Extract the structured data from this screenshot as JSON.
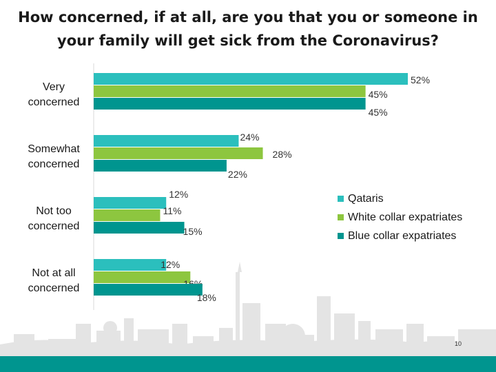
{
  "page_number": "10",
  "colors": {
    "qataris": "#2bbfbd",
    "white_collar": "#8dc63f",
    "blue_collar": "#00958f",
    "footer": "#00958f",
    "skyline": "#e4e4e4"
  },
  "chart_data": {
    "type": "bar",
    "orientation": "horizontal",
    "title_lines": [
      "How concerned, if at all, are you that you or someone in",
      "your family will get sick from the Coronavirus?"
    ],
    "categories": [
      [
        "Very",
        "concerned"
      ],
      [
        "Somewhat",
        "concerned"
      ],
      [
        "Not too",
        "concerned"
      ],
      [
        "Not at all",
        "concerned"
      ]
    ],
    "series": [
      {
        "name": "Qataris",
        "color": "#2bbfbd",
        "values": [
          52,
          24,
          12,
          12
        ],
        "labels": [
          "52%",
          "24%",
          "12%",
          "12%"
        ]
      },
      {
        "name": "White collar expatriates",
        "color": "#8dc63f",
        "values": [
          45,
          28,
          11,
          16
        ],
        "labels": [
          "45%",
          "28%",
          "11%",
          "16%"
        ]
      },
      {
        "name": "Blue collar expatriates",
        "color": "#00958f",
        "values": [
          45,
          22,
          15,
          18
        ],
        "labels": [
          "45%",
          "22%",
          "15%",
          "18%"
        ]
      }
    ],
    "xlim": [
      0,
      52
    ],
    "grid": false,
    "legend_position": "right"
  }
}
